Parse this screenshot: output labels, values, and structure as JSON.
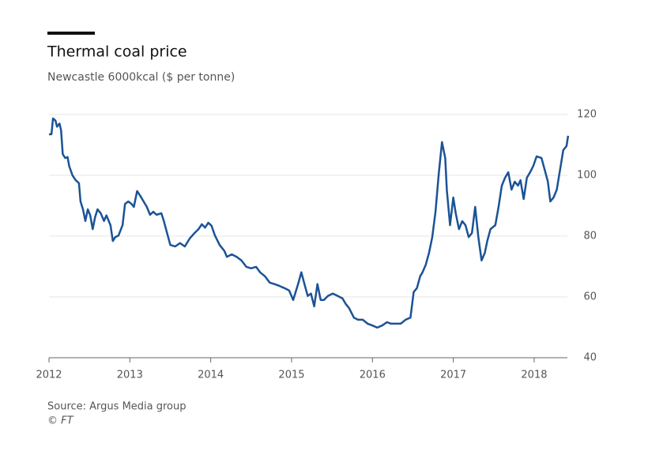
{
  "chart_data": {
    "type": "line",
    "title": "Thermal coal price",
    "subtitle": "Newcastle 6000kcal ($ per tonne)",
    "source": "Source: Argus Media group",
    "credit": "© FT",
    "color": "#1a5396",
    "grid": true,
    "y_axis_side": "right",
    "xlim": [
      2012,
      2018.45
    ],
    "xticks": [
      2012,
      2013,
      2014,
      2015,
      2016,
      2017,
      2018
    ],
    "ylim": [
      40,
      120
    ],
    "yticks": [
      40,
      60,
      80,
      100,
      120
    ],
    "x": [
      2012.0,
      2012.03,
      2012.05,
      2012.08,
      2012.1,
      2012.13,
      2012.15,
      2012.17,
      2012.2,
      2012.23,
      2012.25,
      2012.29,
      2012.33,
      2012.37,
      2012.39,
      2012.42,
      2012.45,
      2012.48,
      2012.51,
      2012.54,
      2012.57,
      2012.6,
      2012.64,
      2012.68,
      2012.71,
      2012.76,
      2012.79,
      2012.82,
      2012.86,
      2012.91,
      2012.94,
      2012.98,
      2013.02,
      2013.05,
      2013.09,
      2013.13,
      2013.17,
      2013.21,
      2013.25,
      2013.29,
      2013.33,
      2013.39,
      2013.42,
      2013.46,
      2013.5,
      2013.56,
      2013.62,
      2013.68,
      2013.74,
      2013.8,
      2013.85,
      2013.89,
      2013.93,
      2013.97,
      2014.01,
      2014.05,
      2014.11,
      2014.17,
      2014.2,
      2014.26,
      2014.32,
      2014.38,
      2014.44,
      2014.5,
      2014.56,
      2014.61,
      2014.67,
      2014.73,
      2014.79,
      2014.85,
      2014.91,
      2014.97,
      2015.02,
      2015.08,
      2015.12,
      2015.16,
      2015.2,
      2015.24,
      2015.28,
      2015.32,
      2015.36,
      2015.4,
      2015.45,
      2015.51,
      2015.57,
      2015.63,
      2015.67,
      2015.71,
      2015.77,
      2015.82,
      2015.88,
      2015.94,
      2016.0,
      2016.06,
      2016.12,
      2016.18,
      2016.23,
      2016.29,
      2016.35,
      2016.41,
      2016.47,
      2016.51,
      2016.55,
      2016.59,
      2016.62,
      2016.66,
      2016.7,
      2016.74,
      2016.78,
      2016.82,
      2016.86,
      2016.9,
      2016.92,
      2016.96,
      2017.0,
      2017.03,
      2017.07,
      2017.11,
      2017.15,
      2017.19,
      2017.23,
      2017.27,
      2017.31,
      2017.35,
      2017.39,
      2017.42,
      2017.46,
      2017.52,
      2017.56,
      2017.6,
      2017.64,
      2017.68,
      2017.72,
      2017.76,
      2017.8,
      2017.83,
      2017.87,
      2017.91,
      2017.95,
      2017.99,
      2018.03,
      2018.09,
      2018.13,
      2018.17,
      2018.2,
      2018.24,
      2018.28,
      2018.32,
      2018.36,
      2018.4,
      2018.42
    ],
    "values": [
      113.5,
      113.5,
      118.7,
      118,
      116,
      117,
      114.8,
      107,
      105.7,
      106,
      103,
      100,
      98.4,
      97.4,
      91.4,
      88.8,
      85,
      88.8,
      86.8,
      82.3,
      86.2,
      88.8,
      87.5,
      85,
      86.8,
      83.6,
      78.4,
      79.7,
      80.2,
      83.6,
      90.6,
      91.4,
      90.6,
      89.6,
      94.8,
      93.2,
      91.4,
      89.6,
      87,
      88,
      87,
      87.5,
      85,
      81,
      77.1,
      76.6,
      77.7,
      76.6,
      79.2,
      81,
      82.3,
      83.9,
      82.8,
      84.4,
      83.4,
      80.3,
      77.1,
      75.1,
      73.2,
      74,
      73.2,
      72,
      69.9,
      69.4,
      69.9,
      68.1,
      66.8,
      64.7,
      64.2,
      63.6,
      62.9,
      62.1,
      59,
      64.2,
      68.1,
      64.2,
      60.3,
      61.1,
      56.9,
      64.2,
      59,
      59,
      60.3,
      61.1,
      60.3,
      59.5,
      57.7,
      56.4,
      53.2,
      52.5,
      52.5,
      51.2,
      50.6,
      49.9,
      50.6,
      51.7,
      51.2,
      51.2,
      51.2,
      52.5,
      53.2,
      61.6,
      62.9,
      66.8,
      68.1,
      70.6,
      74.5,
      79.7,
      88,
      100.5,
      110.9,
      105.7,
      95.3,
      83.6,
      92.7,
      87.5,
      82.3,
      84.9,
      83.6,
      79.7,
      81,
      89.6,
      79.7,
      72,
      74.5,
      78.4,
      82.3,
      83.6,
      89.6,
      96.6,
      99.2,
      101,
      95.3,
      97.9,
      96.6,
      98.4,
      92.2,
      99.2,
      101,
      103.1,
      106.2,
      105.7,
      101.8,
      97.9,
      91.4,
      92.7,
      95.3,
      101.8,
      108.3,
      109.6,
      113
    ]
  }
}
